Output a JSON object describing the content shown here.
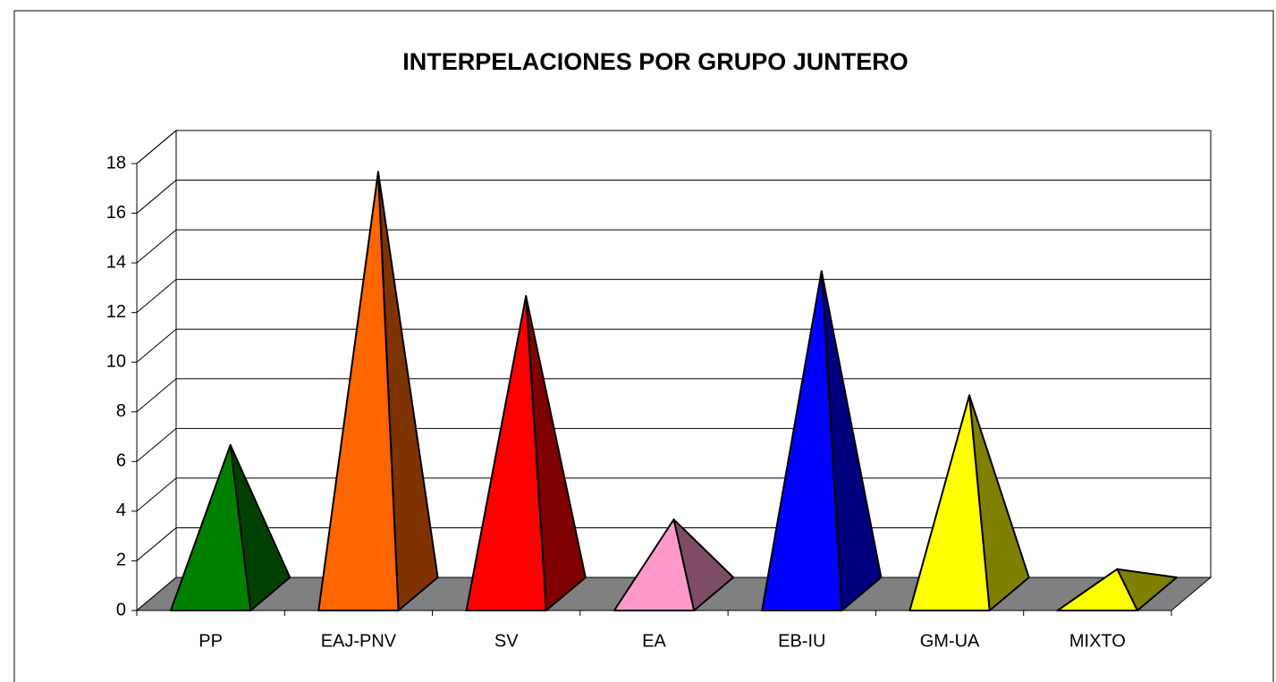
{
  "chart_data": {
    "type": "pyramid3d",
    "title": "INTERPELACIONES POR GRUPO JUNTERO",
    "categories": [
      "PP",
      "EAJ-PNV",
      "SV",
      "EA",
      "EB-IU",
      "GM-UA",
      "MIXTO"
    ],
    "values": [
      6,
      17,
      12,
      3,
      13,
      8,
      1
    ],
    "colors": [
      "#008000",
      "#ff6600",
      "#ff0000",
      "#ff99cc",
      "#0000ff",
      "#ffff00",
      "#ffff00"
    ],
    "ylim": [
      0,
      18
    ],
    "yticks": [
      0,
      2,
      4,
      6,
      8,
      10,
      12,
      14,
      16,
      18
    ],
    "grid": true
  }
}
